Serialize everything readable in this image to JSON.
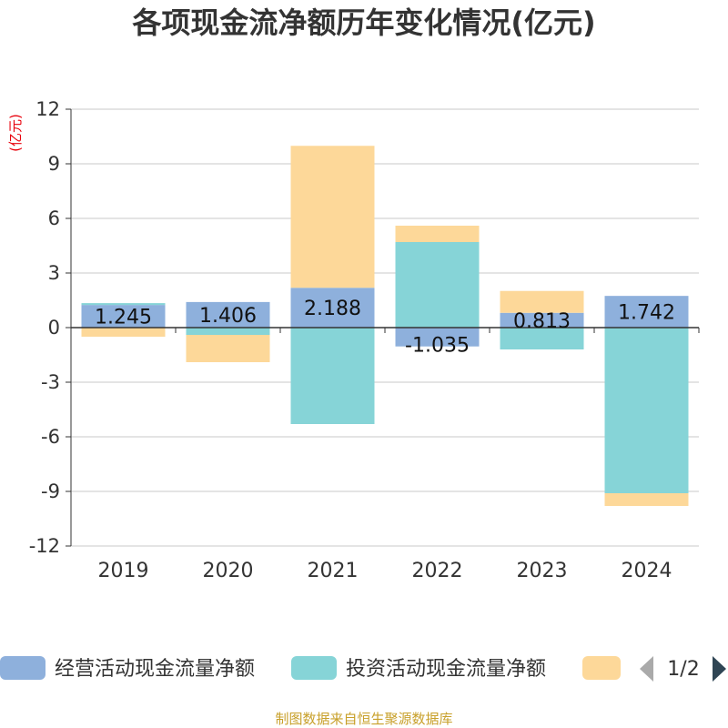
{
  "title": "各项现金流净额历年变化情况(亿元)",
  "unit_label": "(亿元)",
  "source_note": "制图数据来自恒生聚源数据库",
  "legend": {
    "page_indicator": "1/2",
    "prev_icon": "triangle-left-icon",
    "next_icon": "triangle-right-icon"
  },
  "colors": {
    "operating": "#8eb0dc",
    "investing": "#86d4d7",
    "financing": "#fdd899",
    "gridline": "#c9c9c9",
    "axis": "#333333",
    "nav_disabled": "#aaaaaa",
    "nav_active": "#2f4554"
  },
  "chart_data": {
    "type": "bar",
    "stacked": true,
    "categories": [
      "2019",
      "2020",
      "2021",
      "2022",
      "2023",
      "2024"
    ],
    "ylim": [
      -12,
      12
    ],
    "yticks": [
      -12,
      -9,
      -6,
      -3,
      0,
      3,
      6,
      9,
      12
    ],
    "ylabel": "(亿元)",
    "grid": true,
    "legend_position": "bottom",
    "series": [
      {
        "name": "经营活动现金流量净额",
        "color": "#8eb0dc",
        "values": [
          1.245,
          1.406,
          2.188,
          -1.035,
          0.813,
          1.742
        ],
        "labels": [
          "1.245",
          "1.406",
          "2.188",
          "-1.035",
          "0.813",
          "1.742"
        ]
      },
      {
        "name": "投资活动现金流量净额",
        "color": "#86d4d7",
        "values": [
          0.1,
          -0.4,
          -5.3,
          4.7,
          -1.2,
          -9.1
        ],
        "labels": []
      },
      {
        "name": "",
        "color": "#fdd899",
        "values": [
          -0.5,
          -1.5,
          7.8,
          0.9,
          1.2,
          -0.7
        ],
        "labels": []
      }
    ]
  }
}
